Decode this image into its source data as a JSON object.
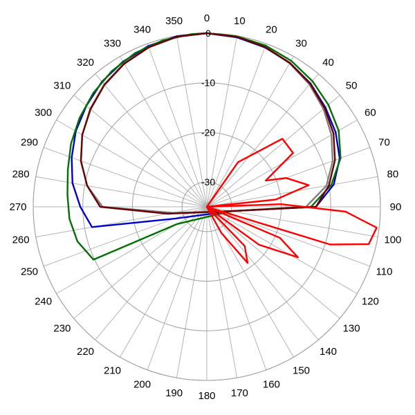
{
  "chart_data": {
    "type": "polar-line",
    "angle_ticks": [
      "0",
      "10",
      "20",
      "30",
      "40",
      "50",
      "60",
      "70",
      "80",
      "90",
      "100",
      "110",
      "120",
      "130",
      "140",
      "150",
      "160",
      "170",
      "180",
      "190",
      "200",
      "210",
      "220",
      "230",
      "240",
      "250",
      "260",
      "270",
      "280",
      "290",
      "300",
      "310",
      "320",
      "330",
      "340",
      "350"
    ],
    "radial_ticks": [
      {
        "value": 0,
        "label": "0"
      },
      {
        "value": -10,
        "label": "-10"
      },
      {
        "value": -20,
        "label": "-20"
      },
      {
        "value": -30,
        "label": "-30"
      }
    ],
    "r_range": [
      -35,
      0
    ],
    "grid": true,
    "legend": "none",
    "series": [
      {
        "color": "#808080",
        "points": [
          [
            0,
            0
          ],
          [
            10,
            -0.2
          ],
          [
            20,
            -0.7
          ],
          [
            30,
            -1.6
          ],
          [
            40,
            -2.8
          ],
          [
            50,
            -4.3
          ],
          [
            60,
            -6
          ],
          [
            70,
            -8
          ],
          [
            80,
            -10.5
          ],
          [
            90,
            -15
          ],
          [
            100,
            -30
          ],
          [
            260,
            -28
          ],
          [
            270,
            -14
          ],
          [
            280,
            -10.5
          ],
          [
            290,
            -8
          ],
          [
            300,
            -6
          ],
          [
            310,
            -4.3
          ],
          [
            320,
            -2.8
          ],
          [
            330,
            -1.6
          ],
          [
            340,
            -0.7
          ],
          [
            350,
            -0.2
          ],
          [
            360,
            0
          ]
        ]
      },
      {
        "color": "#0000cc",
        "points": [
          [
            0,
            0
          ],
          [
            10,
            -0.3
          ],
          [
            20,
            -0.8
          ],
          [
            30,
            -1.5
          ],
          [
            40,
            -2.5
          ],
          [
            50,
            -3.8
          ],
          [
            60,
            -5
          ],
          [
            70,
            -6.5
          ],
          [
            80,
            -9
          ],
          [
            90,
            -13
          ],
          [
            100,
            -30
          ],
          [
            250,
            -28
          ],
          [
            260,
            -11.5
          ],
          [
            270,
            -9.5
          ],
          [
            280,
            -7.5
          ],
          [
            290,
            -6
          ],
          [
            300,
            -4.5
          ],
          [
            310,
            -3.3
          ],
          [
            320,
            -2.1
          ],
          [
            330,
            -1.2
          ],
          [
            340,
            -0.5
          ],
          [
            350,
            -0.1
          ],
          [
            360,
            0
          ]
        ]
      },
      {
        "color": "#007000",
        "points": [
          [
            0,
            0
          ],
          [
            10,
            -0.1
          ],
          [
            20,
            -0.4
          ],
          [
            30,
            -1.0
          ],
          [
            40,
            -1.9
          ],
          [
            50,
            -3.0
          ],
          [
            60,
            -4.3
          ],
          [
            70,
            -6.3
          ],
          [
            80,
            -9.5
          ],
          [
            90,
            -14
          ],
          [
            100,
            -30
          ],
          [
            240,
            -28
          ],
          [
            245,
            -9.8
          ],
          [
            255,
            -8
          ],
          [
            265,
            -7.2
          ],
          [
            275,
            -6.8
          ],
          [
            285,
            -6
          ],
          [
            295,
            -4.8
          ],
          [
            305,
            -3.7
          ],
          [
            315,
            -2.6
          ],
          [
            325,
            -1.6
          ],
          [
            335,
            -0.8
          ],
          [
            345,
            -0.3
          ],
          [
            355,
            -0.05
          ],
          [
            360,
            0
          ]
        ]
      },
      {
        "color": "#6b0000",
        "points": [
          [
            0,
            0
          ],
          [
            10,
            -0.2
          ],
          [
            20,
            -0.7
          ],
          [
            30,
            -1.5
          ],
          [
            40,
            -2.6
          ],
          [
            50,
            -4
          ],
          [
            60,
            -5.5
          ],
          [
            70,
            -7.5
          ],
          [
            80,
            -10
          ],
          [
            90,
            -13
          ],
          [
            100,
            -30
          ],
          [
            260,
            -27
          ],
          [
            270,
            -13.5
          ],
          [
            280,
            -10.5
          ],
          [
            290,
            -8
          ],
          [
            300,
            -6
          ],
          [
            310,
            -4.4
          ],
          [
            320,
            -2.9
          ],
          [
            330,
            -1.7
          ],
          [
            340,
            -0.8
          ],
          [
            350,
            -0.2
          ],
          [
            360,
            0
          ]
        ]
      },
      {
        "color": "#ff0000",
        "points": [
          [
            20,
            -35
          ],
          [
            35,
            -24
          ],
          [
            48,
            -14.5
          ],
          [
            58,
            -14.5
          ],
          [
            66,
            -22
          ],
          [
            70,
            -18
          ],
          [
            78,
            -14
          ],
          [
            84,
            -21
          ],
          [
            86,
            -35
          ],
          [
            84,
            -35
          ],
          [
            88,
            -20
          ],
          [
            92,
            -7
          ],
          [
            97,
            -0.5
          ],
          [
            103,
            -1.5
          ],
          [
            107,
            -9
          ],
          [
            108,
            -35
          ],
          [
            110,
            -35
          ],
          [
            113,
            -19
          ],
          [
            119,
            -14
          ],
          [
            126,
            -22
          ],
          [
            128,
            -35
          ],
          [
            130,
            -35
          ],
          [
            136,
            -24
          ],
          [
            144,
            -21
          ],
          [
            151,
            -29
          ],
          [
            152,
            -35
          ]
        ]
      }
    ]
  }
}
